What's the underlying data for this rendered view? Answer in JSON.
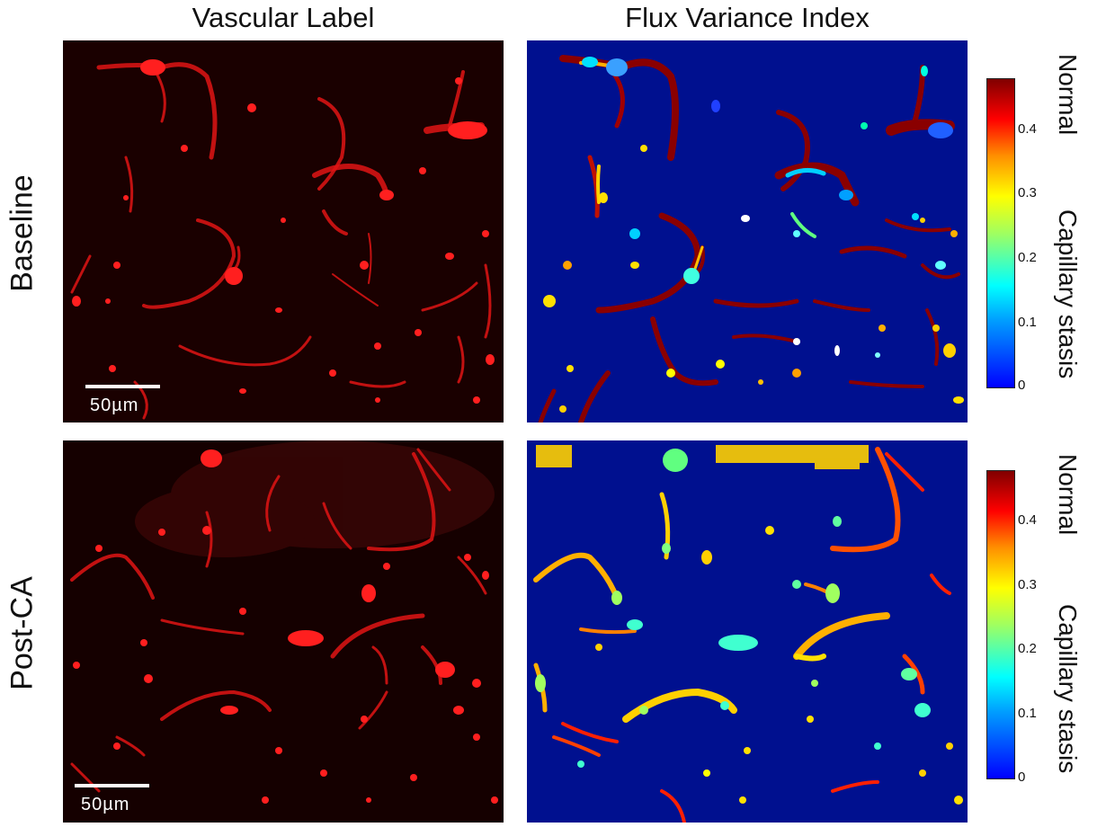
{
  "columns": {
    "left": "Vascular Label",
    "right": "Flux Variance Index"
  },
  "rows": {
    "top": "Baseline",
    "bottom": "Post-CA"
  },
  "scalebar_label": "50µm",
  "colorbar": {
    "top_label": "Normal",
    "bottom_label": "Capillary stasis",
    "ticks": [
      "0",
      "0.1",
      "0.2",
      "0.3",
      "0.4"
    ],
    "colormap": [
      "#0000ff",
      "#00ffff",
      "#ffff00",
      "#ff0000",
      "#800000"
    ]
  },
  "colors": {
    "vascular_bg": "#1a0000",
    "vascular_vessel": "#ff1a1a",
    "flux_bg": "#00108f"
  }
}
